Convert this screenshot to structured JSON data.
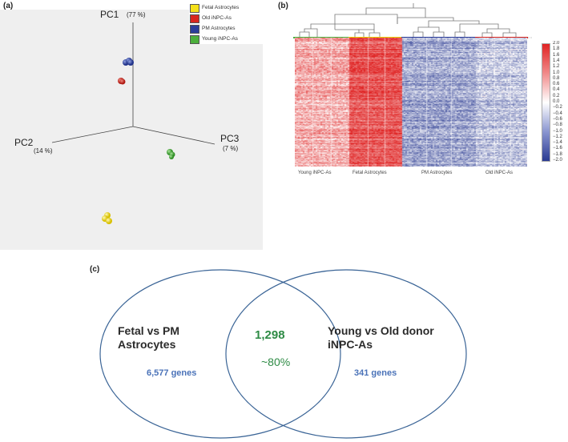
{
  "panels": {
    "a": "(a)",
    "b": "(b)",
    "c": "(c)"
  },
  "pca": {
    "axes": [
      {
        "name": "PC1",
        "variance": "(77 %)"
      },
      {
        "name": "PC2",
        "variance": "(14 %)"
      },
      {
        "name": "PC3",
        "variance": "(7 %)"
      }
    ],
    "legend": [
      {
        "label": "Fetal Astrocytes",
        "color": "#f5e11a"
      },
      {
        "label": "Old iNPC-As",
        "color": "#d8261e"
      },
      {
        "label": "PM Astrocytes",
        "color": "#2c3e9a"
      },
      {
        "label": "Young iNPC-As",
        "color": "#4caf3c"
      }
    ]
  },
  "heatmap": {
    "groups": [
      "Young iNPC-As",
      "Fetal Astrocytes",
      "PM Astrocytes",
      "Old iNPC-As"
    ],
    "colorbar_ticks": [
      "2.0",
      "1.8",
      "1.6",
      "1.4",
      "1.2",
      "1.0",
      "0.8",
      "0.6",
      "0.4",
      "0.2",
      "0.0",
      "−0.2",
      "−0.4",
      "−0.6",
      "−0.8",
      "−1.0",
      "−1.2",
      "−1.4",
      "−1.6",
      "−1.8",
      "−2.0"
    ]
  },
  "venn": {
    "left_title": "Fetal vs PM\nAstrocytes",
    "left_count": "6,577 genes",
    "right_title": "Young vs Old donor\niNPC-As",
    "right_count": "341 genes",
    "overlap_count": "1,298",
    "overlap_pct": "~80%",
    "colors": {
      "count": "#4a72b8",
      "overlap": "#2e8b45",
      "circle": "#3a6496"
    }
  }
}
